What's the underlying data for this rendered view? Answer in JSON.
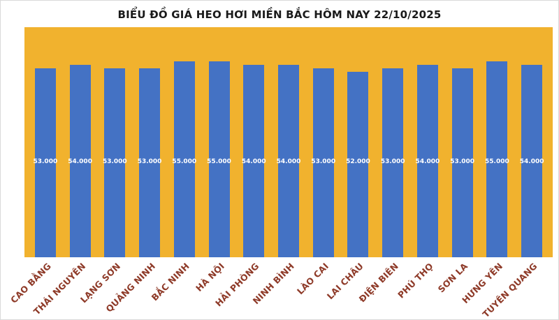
{
  "title": "BIỂU ĐỒ GIÁ HEO HƠI MIỀN BẮC HÔM NAY 22/10/2025",
  "colors": {
    "plot_bg": "#F1B22E",
    "bar": "#4472C4",
    "value_label": "#FFFFFF",
    "category_label": "#8E3A28",
    "title": "#1A1A1A"
  },
  "chart_data": {
    "type": "bar",
    "title": "BIỂU ĐỒ GIÁ HEO HƠI MIỀN BẮC HÔM NAY 22/10/2025",
    "categories": [
      "CAO BẰNG",
      "THÁI NGUYÊN",
      "LẠNG SƠN",
      "QUẢNG NINH",
      "BẮC NINH",
      "HÀ NỘI",
      "HẢI PHÒNG",
      "NINH BÌNH",
      "LÀO CAI",
      "LAI CHÂU",
      "ĐIỆN BIÊN",
      "PHÚ THỌ",
      "SƠN LA",
      "HƯNG YÊN",
      "TUYÊN QUANG"
    ],
    "values": [
      53000,
      54000,
      53000,
      53000,
      55000,
      55000,
      54000,
      54000,
      53000,
      52000,
      53000,
      54000,
      53000,
      55000,
      54000
    ],
    "value_labels": [
      "53.000",
      "54.000",
      "53.000",
      "53.000",
      "55.000",
      "55.000",
      "54.000",
      "54.000",
      "53.000",
      "52.000",
      "53.000",
      "54.000",
      "53.000",
      "55.000",
      "54.000"
    ],
    "xlabel": "",
    "ylabel": "",
    "ylim": [
      0,
      64500
    ],
    "grid": false,
    "legend": false,
    "value_label_position": "inside-fixed-band"
  }
}
